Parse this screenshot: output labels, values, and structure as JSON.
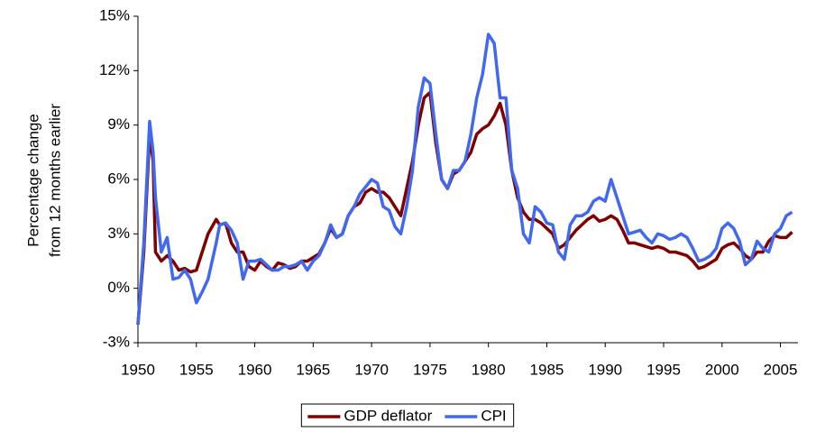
{
  "chart_data": {
    "type": "line",
    "ylabel": [
      "Percentage change",
      "from 12 months earlier"
    ],
    "x": [
      1950,
      1950.5,
      1951,
      1951.3,
      1951.5,
      1952,
      1952.5,
      1953,
      1953.5,
      1954,
      1954.5,
      1955,
      1955.5,
      1956,
      1956.7,
      1957,
      1957.5,
      1958,
      1958.5,
      1959,
      1959.5,
      1960,
      1960.5,
      1961,
      1961.5,
      1962,
      1962.5,
      1963,
      1963.5,
      1964,
      1964.5,
      1965,
      1965.5,
      1966,
      1966.5,
      1967,
      1967.5,
      1968,
      1968.5,
      1969,
      1969.5,
      1970,
      1970.5,
      1971,
      1971.5,
      1972,
      1972.5,
      1973,
      1973.5,
      1974,
      1974.5,
      1975,
      1975.5,
      1976,
      1976.5,
      1977,
      1977.5,
      1978,
      1978.5,
      1979,
      1979.5,
      1980,
      1980.5,
      1981,
      1981.5,
      1982,
      1982.5,
      1983,
      1983.5,
      1984,
      1984.5,
      1985,
      1985.5,
      1986,
      1986.5,
      1987,
      1987.5,
      1988,
      1988.5,
      1989,
      1989.5,
      1990,
      1990.5,
      1991,
      1991.5,
      1992,
      1992.5,
      1993,
      1993.5,
      1994,
      1994.5,
      1995,
      1995.5,
      1996,
      1996.5,
      1997,
      1997.5,
      1998,
      1998.5,
      1999,
      1999.5,
      2000,
      2000.5,
      2001,
      2001.5,
      2002,
      2002.5,
      2003,
      2003.5,
      2004,
      2004.5,
      2005,
      2005.5,
      2006
    ],
    "series": [
      {
        "name": "GDP deflator",
        "color": "#800000",
        "values": [
          -2,
          2,
          8.5,
          7,
          2,
          1.5,
          1.8,
          1.5,
          1.0,
          1.1,
          0.9,
          1.0,
          2,
          3,
          3.8,
          3.5,
          3.6,
          2.5,
          2.0,
          2,
          1.2,
          1.0,
          1.5,
          1.2,
          1.0,
          1.4,
          1.3,
          1.1,
          1.2,
          1.5,
          1.5,
          1.7,
          1.9,
          2.5,
          3.3,
          2.8,
          3.0,
          4.0,
          4.5,
          4.7,
          5.3,
          5.5,
          5.3,
          5.3,
          5.0,
          4.5,
          4.0,
          5.5,
          7.0,
          9.0,
          10.5,
          10.8,
          8.0,
          6.0,
          5.5,
          6.3,
          6.5,
          7.0,
          7.5,
          8.5,
          8.8,
          9.0,
          9.5,
          10.2,
          9.0,
          6.5,
          5.0,
          4.2,
          3.8,
          3.8,
          3.6,
          3.3,
          3.0,
          2.2,
          2.4,
          2.8,
          3.2,
          3.5,
          3.8,
          4.0,
          3.7,
          3.8,
          4.0,
          3.8,
          3.2,
          2.5,
          2.5,
          2.4,
          2.3,
          2.2,
          2.3,
          2.2,
          2.0,
          2.0,
          1.9,
          1.8,
          1.5,
          1.1,
          1.2,
          1.4,
          1.6,
          2.2,
          2.4,
          2.5,
          2.2,
          1.8,
          1.6,
          2.0,
          2.0,
          2.6,
          2.9,
          2.8,
          2.8,
          3.1
        ]
      },
      {
        "name": "CPI",
        "color": "#4169f0",
        "values": [
          -2,
          2.5,
          9.2,
          7.5,
          5,
          2,
          2.8,
          0.5,
          0.6,
          1.0,
          0.5,
          -0.8,
          -0.2,
          0.5,
          2.5,
          3.5,
          3.6,
          3.2,
          2.5,
          0.5,
          1.5,
          1.5,
          1.6,
          1.3,
          1.0,
          1.0,
          1.2,
          1.2,
          1.3,
          1.5,
          1.0,
          1.5,
          1.8,
          2.5,
          3.5,
          2.8,
          3.0,
          4.0,
          4.5,
          5.2,
          5.6,
          6.0,
          5.8,
          4.5,
          4.3,
          3.4,
          3.0,
          4.5,
          6.5,
          10.0,
          11.6,
          11.3,
          8.5,
          6.0,
          5.5,
          6.5,
          6.5,
          7.0,
          8.5,
          10.5,
          11.8,
          14.0,
          13.5,
          10.5,
          10.5,
          6.5,
          5.5,
          3.0,
          2.5,
          4.5,
          4.2,
          3.6,
          3.5,
          2.0,
          1.6,
          3.5,
          4.0,
          4.0,
          4.2,
          4.8,
          5.0,
          4.8,
          6.0,
          5.0,
          4.0,
          3.0,
          3.1,
          3.2,
          2.8,
          2.5,
          3.0,
          2.9,
          2.7,
          2.8,
          3.0,
          2.8,
          2.2,
          1.5,
          1.6,
          1.8,
          2.2,
          3.3,
          3.6,
          3.3,
          2.6,
          1.3,
          1.6,
          2.6,
          2.2,
          2.0,
          3.0,
          3.3,
          4.0,
          4.2
        ]
      }
    ],
    "xlim": [
      1950,
      2006.5
    ],
    "xticks": [
      1950,
      1955,
      1960,
      1965,
      1970,
      1975,
      1980,
      1985,
      1990,
      1995,
      2000,
      2005
    ],
    "ylim": [
      -3,
      15
    ],
    "yticks": [
      {
        "value": -3,
        "label": "-3%"
      },
      {
        "value": 0,
        "label": "0%"
      },
      {
        "value": 3,
        "label": "3%"
      },
      {
        "value": 6,
        "label": "6%"
      },
      {
        "value": 9,
        "label": "9%"
      },
      {
        "value": 12,
        "label": "12%"
      },
      {
        "value": 15,
        "label": "15%"
      }
    ],
    "grid": false,
    "legend": "bottom"
  }
}
